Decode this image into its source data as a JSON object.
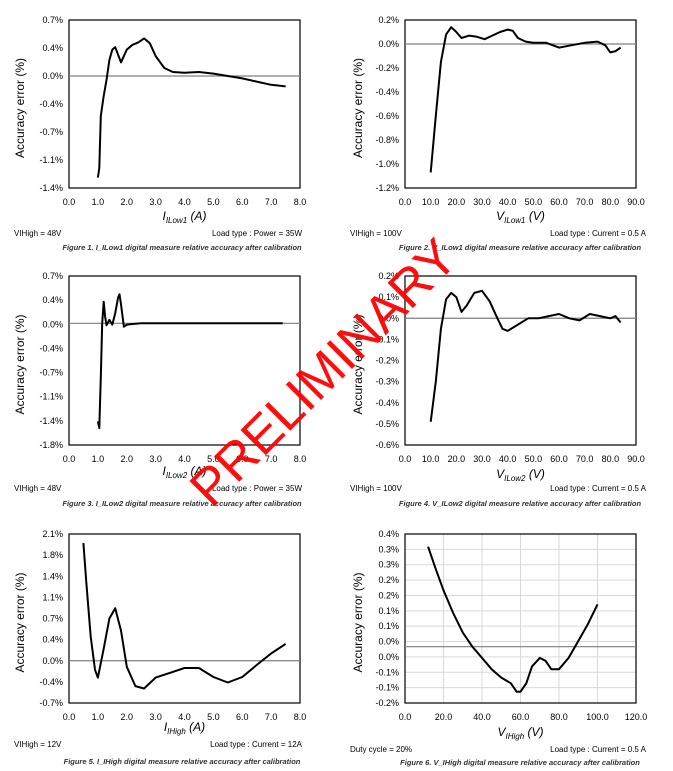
{
  "chart_data": [
    {
      "type": "line",
      "ylabel": "Accuracy error (%)",
      "xlabel": "I_ILow1 (A)",
      "xticks": [
        "0.0",
        "1.0",
        "2.0",
        "3.0",
        "4.0",
        "5.0",
        "6.0",
        "7.0",
        "8.0"
      ],
      "yticks": [
        "0.7%",
        "0.4%",
        "0.0%",
        "-0.4%",
        "-0.7%",
        "-1.1%",
        "-1.4%"
      ],
      "xlim": [
        0,
        8
      ],
      "ylim": [
        -1.4,
        0.7
      ],
      "grid": false,
      "x": [
        1.0,
        1.05,
        1.1,
        1.2,
        1.3,
        1.4,
        1.5,
        1.6,
        1.8,
        2.0,
        2.2,
        2.4,
        2.6,
        2.8,
        3.0,
        3.3,
        3.6,
        4.0,
        4.5,
        5.0,
        5.5,
        6.0,
        6.5,
        7.0,
        7.5
      ],
      "y": [
        -1.27,
        -1.15,
        -0.5,
        -0.25,
        -0.05,
        0.2,
        0.33,
        0.36,
        0.17,
        0.33,
        0.39,
        0.42,
        0.47,
        0.41,
        0.25,
        0.1,
        0.05,
        0.04,
        0.05,
        0.03,
        0.0,
        -0.03,
        -0.07,
        -0.11,
        -0.13
      ],
      "left_note": "VIHigh = 48V",
      "right_note": "Load type : Power = 35W",
      "caption": "Figure 1. I_ILow1 digital measure relative accuracy after calibration"
    },
    {
      "type": "line",
      "ylabel": "Accuracy error (%)",
      "xlabel": "V_ILow1 (V)",
      "xticks": [
        "0.0",
        "10.0",
        "20.0",
        "30.0",
        "40.0",
        "50.0",
        "60.0",
        "70.0",
        "80.0",
        "90.0"
      ],
      "yticks": [
        "0.2%",
        "0.0%",
        "-0.2%",
        "-0.4%",
        "-0.6%",
        "-0.8%",
        "-1.0%",
        "-1.2%"
      ],
      "xlim": [
        0,
        90
      ],
      "ylim": [
        -1.2,
        0.2
      ],
      "grid": false,
      "x": [
        10,
        12,
        14,
        16,
        18,
        20,
        22,
        25,
        28,
        31,
        34,
        37,
        40,
        42,
        44,
        47,
        50,
        55,
        60,
        65,
        70,
        75,
        78,
        80,
        82,
        84
      ],
      "y": [
        -1.07,
        -0.6,
        -0.15,
        0.08,
        0.14,
        0.1,
        0.05,
        0.07,
        0.06,
        0.04,
        0.07,
        0.1,
        0.12,
        0.11,
        0.05,
        0.02,
        0.01,
        0.01,
        -0.03,
        -0.01,
        0.01,
        0.02,
        -0.01,
        -0.07,
        -0.06,
        -0.03
      ],
      "left_note": "VIHigh = 100V",
      "right_note": "Load type : Current = 0.5 A",
      "caption": "Figure 2. V_ILow1 digital measure relative accuracy after calibration"
    },
    {
      "type": "line",
      "ylabel": "Accuracy error (%)",
      "xlabel": "I_ILow2 (A)",
      "xticks": [
        "0.0",
        "1.0",
        "2.0",
        "3.0",
        "4.0",
        "5.0",
        "6.0",
        "7.0",
        "8.0"
      ],
      "yticks": [
        "0.7%",
        "0.4%",
        "0.0%",
        "-0.4%",
        "-0.7%",
        "-1.1%",
        "-1.4%",
        "-1.8%"
      ],
      "xlim": [
        0,
        8
      ],
      "ylim": [
        -1.8,
        0.7
      ],
      "grid": false,
      "x": [
        1.0,
        1.05,
        1.1,
        1.15,
        1.2,
        1.25,
        1.3,
        1.4,
        1.5,
        1.6,
        1.7,
        1.75,
        1.8,
        1.9,
        2.0,
        2.2,
        2.5,
        3.0,
        4.0,
        5.0,
        6.0,
        7.0,
        7.4
      ],
      "y": [
        -1.45,
        -1.55,
        -0.8,
        0.0,
        0.32,
        0.1,
        -0.03,
        0.05,
        -0.02,
        0.15,
        0.38,
        0.43,
        0.28,
        -0.05,
        -0.02,
        -0.01,
        0.0,
        0.0,
        0.0,
        0.0,
        0.0,
        0.0,
        0.0
      ],
      "left_note": "VIHigh = 48V",
      "right_note": "Load type : Power = 35W",
      "caption": "Figure 3. I_ILow2 digital measure relative accuracy after calibration"
    },
    {
      "type": "line",
      "ylabel": "Accuracy error (%)",
      "xlabel": "V_ILow2 (V)",
      "xticks": [
        "0.0",
        "10.0",
        "20.0",
        "30.0",
        "40.0",
        "50.0",
        "60.0",
        "70.0",
        "80.0",
        "90.0"
      ],
      "yticks": [
        "0.2%",
        "0.1%",
        "0.0%",
        "-0.1%",
        "-0.2%",
        "-0.3%",
        "-0.4%",
        "-0.5%",
        "-0.6%"
      ],
      "xlim": [
        0,
        90
      ],
      "ylim": [
        -0.6,
        0.2
      ],
      "grid": false,
      "x": [
        10,
        12,
        14,
        16,
        18,
        20,
        22,
        24,
        27,
        30,
        33,
        36,
        38,
        40,
        44,
        48,
        52,
        56,
        60,
        64,
        68,
        72,
        76,
        80,
        82,
        84
      ],
      "y": [
        -0.49,
        -0.3,
        -0.05,
        0.09,
        0.12,
        0.1,
        0.03,
        0.06,
        0.12,
        0.13,
        0.08,
        0.0,
        -0.05,
        -0.06,
        -0.03,
        0.0,
        0.0,
        0.01,
        0.02,
        0.0,
        -0.01,
        0.02,
        0.01,
        0.0,
        0.01,
        -0.02
      ],
      "left_note": "VIHigh = 100V",
      "right_note": "Load type : Current = 0.5 A",
      "caption": "Figure 4. V_ILow2 digital measure relative accuracy after calibration"
    },
    {
      "type": "line",
      "ylabel": "Accuracy error (%)",
      "xlabel": "I_IHigh (A)",
      "xticks": [
        "0.0",
        "1.0",
        "2.0",
        "3.0",
        "4.0",
        "5.0",
        "6.0",
        "7.0",
        "8.0"
      ],
      "yticks": [
        "2.1%",
        "1.8%",
        "1.4%",
        "1.1%",
        "0.7%",
        "0.4%",
        "0.0%",
        "-0.4%",
        "-0.7%"
      ],
      "xlim": [
        0,
        8
      ],
      "ylim": [
        -0.7,
        2.1
      ],
      "grid": false,
      "x": [
        0.5,
        0.6,
        0.75,
        0.9,
        1.0,
        1.2,
        1.4,
        1.6,
        1.8,
        2.0,
        2.3,
        2.6,
        3.0,
        3.5,
        4.0,
        4.5,
        5.0,
        5.5,
        6.0,
        6.5,
        7.0,
        7.5
      ],
      "y": [
        1.95,
        1.3,
        0.4,
        -0.15,
        -0.28,
        0.2,
        0.7,
        0.87,
        0.5,
        -0.1,
        -0.42,
        -0.46,
        -0.28,
        -0.2,
        -0.12,
        -0.12,
        -0.27,
        -0.36,
        -0.27,
        -0.07,
        0.12,
        0.28
      ],
      "left_note": "VIHigh = 12V",
      "right_note": "Load type : Current = 12A",
      "caption": "Figure 5. I_IHigh digital measure relative accuracy after calibration"
    },
    {
      "type": "line",
      "ylabel": "Accuracy error (%)",
      "xlabel": "V_IHigh (V)",
      "xticks": [
        "0.0",
        "20.0",
        "40.0",
        "60.0",
        "80.0",
        "100.0",
        "120.0"
      ],
      "yticks": [
        "0.4%",
        "0.3%",
        "0.3%",
        "0.2%",
        "0.2%",
        "0.1%",
        "0.1%",
        "0.0%",
        "0.0%",
        "-0.1%",
        "-0.1%",
        "-0.2%"
      ],
      "xlim": [
        0,
        120
      ],
      "ylim": [
        -0.2,
        0.4
      ],
      "grid": true,
      "x": [
        12,
        16,
        20,
        25,
        30,
        35,
        40,
        45,
        50,
        55,
        58,
        60,
        63,
        66,
        70,
        73,
        76,
        80,
        85,
        90,
        95,
        100
      ],
      "y": [
        0.355,
        0.275,
        0.2,
        0.12,
        0.05,
        0.0,
        -0.04,
        -0.08,
        -0.11,
        -0.13,
        -0.16,
        -0.16,
        -0.13,
        -0.07,
        -0.04,
        -0.05,
        -0.08,
        -0.08,
        -0.04,
        0.02,
        0.08,
        0.15
      ],
      "left_note": "Duty cycle = 20%",
      "right_note": "Load type : Current = 0.5 A",
      "caption": "Figure 6. V_IHigh digital measure relative accuracy after calibration"
    }
  ],
  "watermark": "PRELIMINARY",
  "watermark_color": "#ff0000"
}
